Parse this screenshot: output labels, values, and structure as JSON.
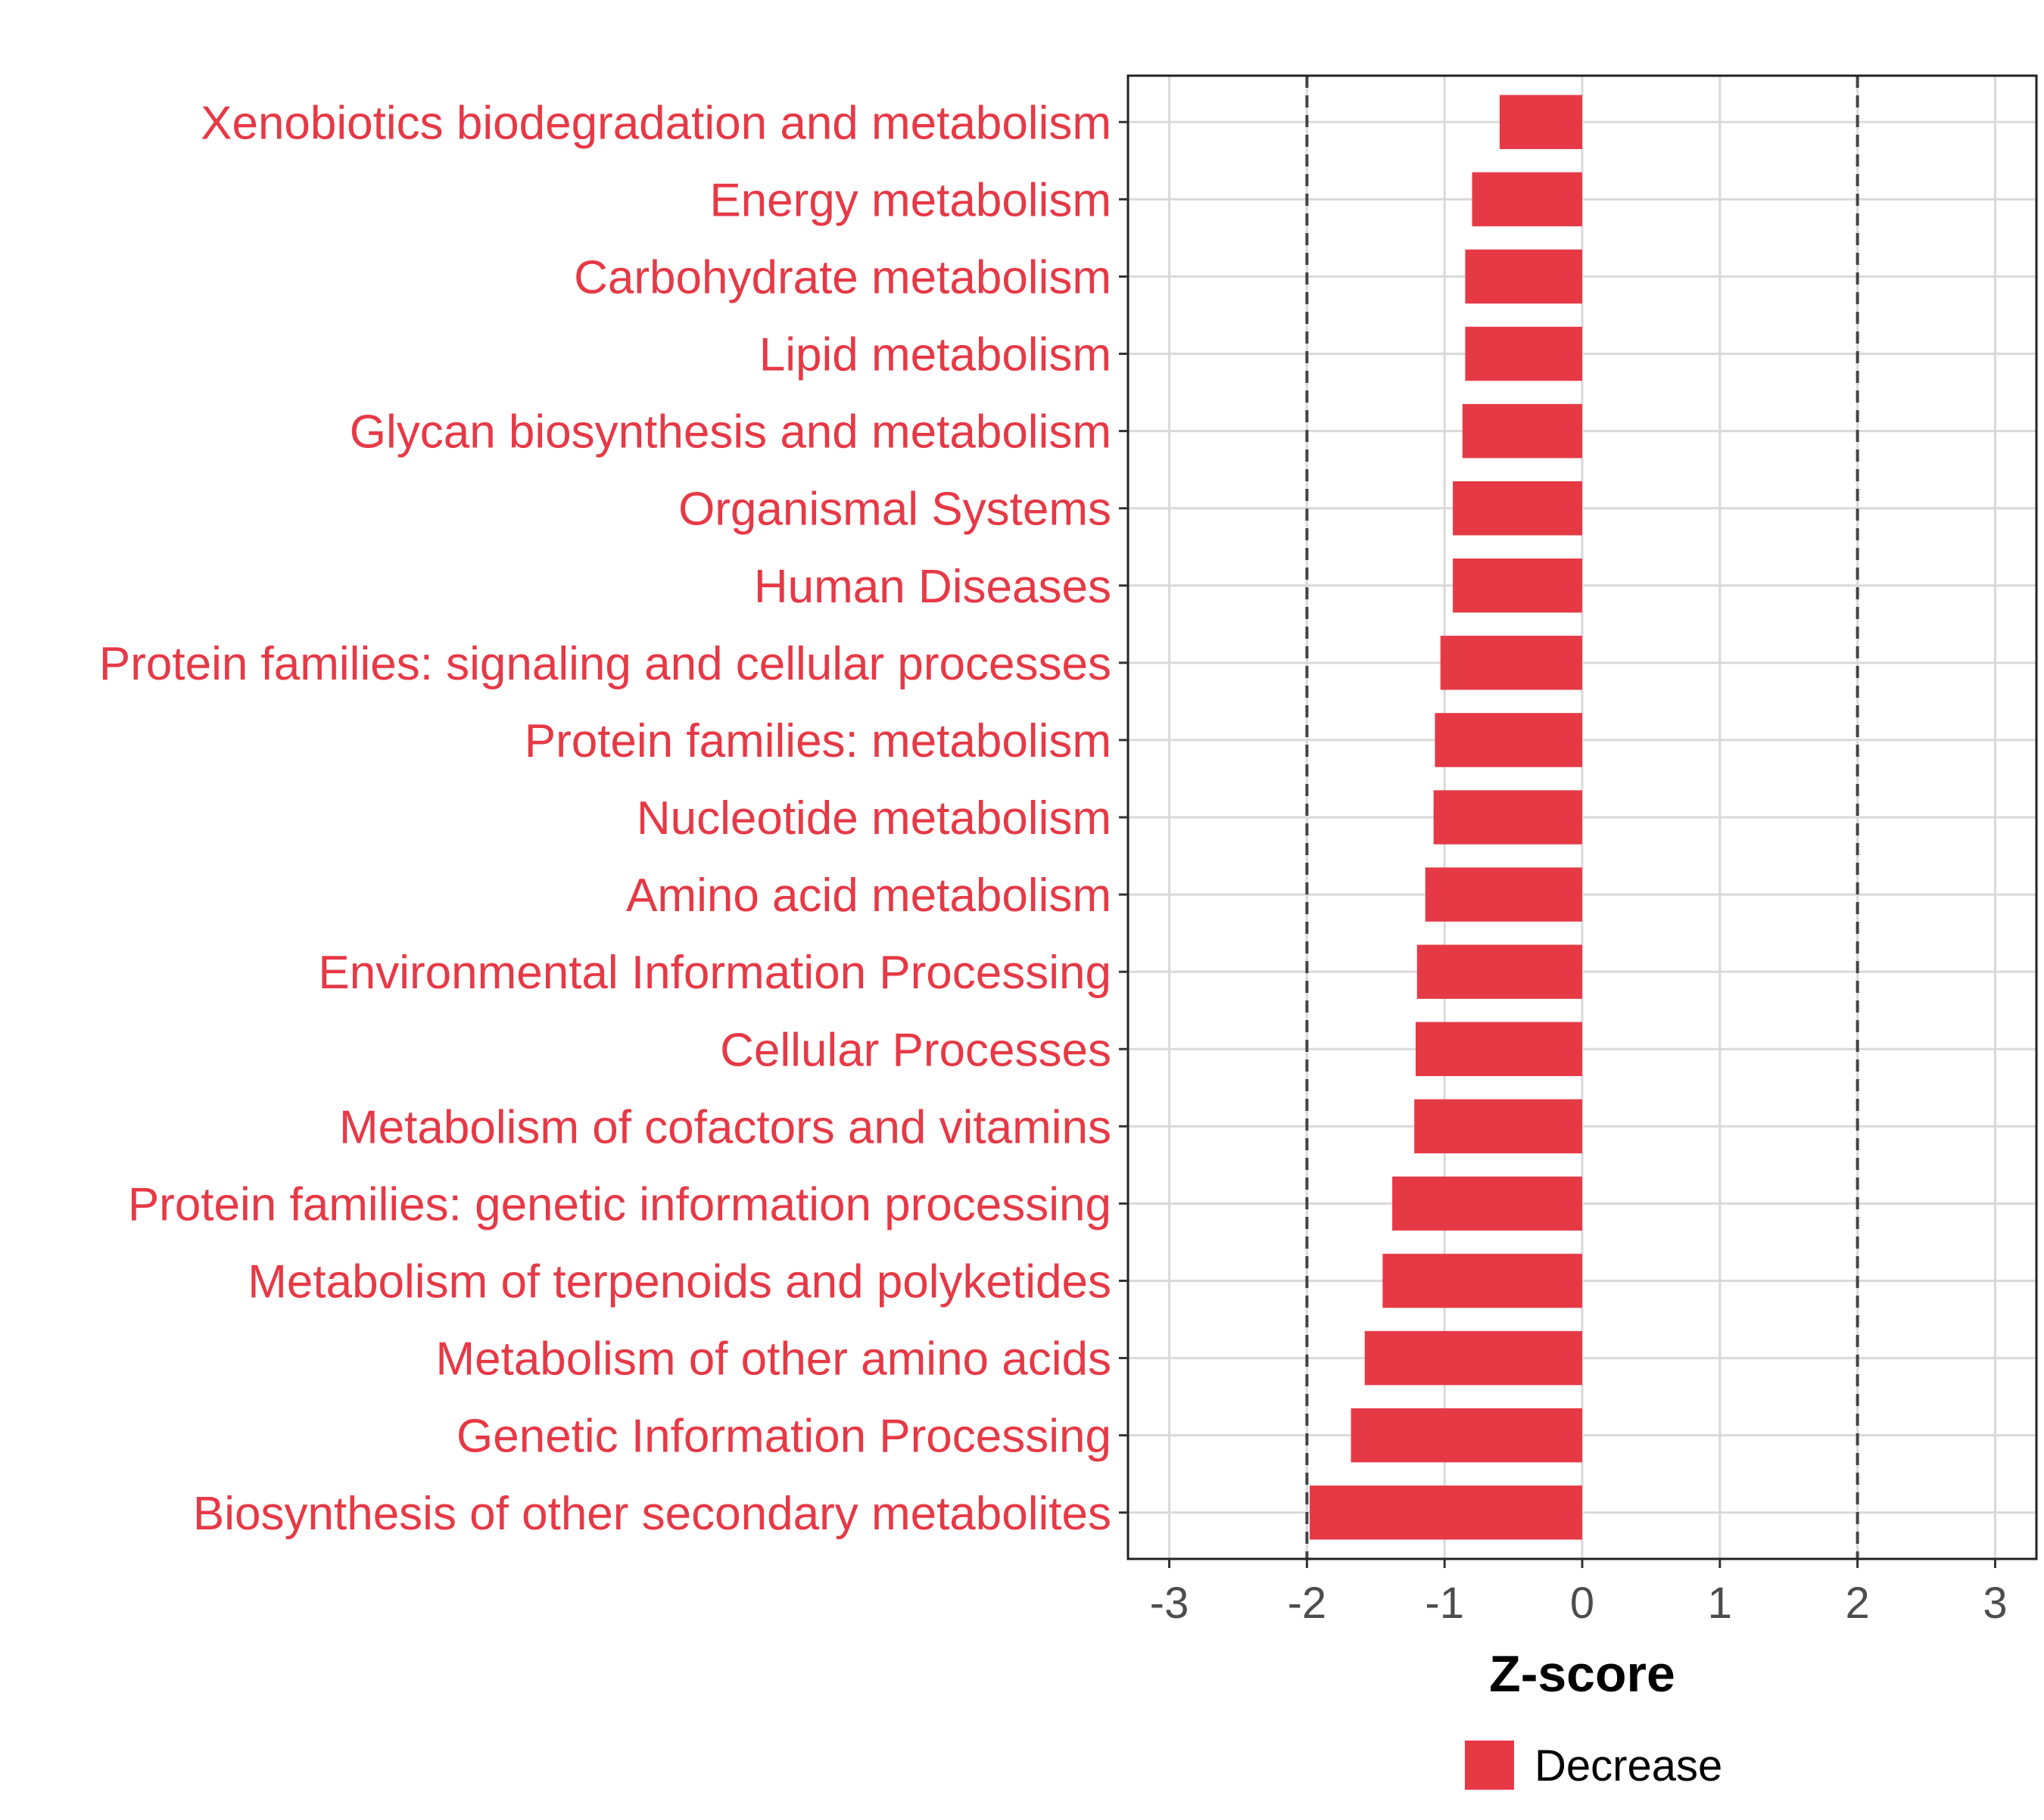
{
  "chart_data": {
    "type": "bar",
    "orientation": "horizontal",
    "xlabel": "Z-score",
    "ylabel": "",
    "xlim": [
      -3.3,
      3.3
    ],
    "xticks": [
      -3,
      -2,
      -1,
      0,
      1,
      2,
      3
    ],
    "reference_lines": [
      -2,
      2
    ],
    "grid": true,
    "legend_position": "bottom",
    "colors": {
      "decrease": "#e63946",
      "label": "#e63946"
    },
    "categories": [
      "Xenobiotics biodegradation and metabolism",
      "Energy metabolism",
      "Carbohydrate metabolism",
      "Lipid metabolism",
      "Glycan biosynthesis and metabolism",
      "Organismal Systems",
      "Human Diseases",
      "Protein families: signaling and cellular processes",
      "Protein families: metabolism",
      "Nucleotide metabolism",
      "Amino acid metabolism",
      "Environmental Information Processing",
      "Cellular Processes",
      "Metabolism of cofactors and vitamins",
      "Protein families: genetic information processing",
      "Metabolism of terpenoids and polyketides",
      "Metabolism of other amino acids",
      "Genetic Information Processing",
      "Biosynthesis of other secondary metabolites"
    ],
    "series": [
      {
        "name": "Decrease",
        "values": [
          -0.6,
          -0.8,
          -0.85,
          -0.85,
          -0.87,
          -0.94,
          -0.94,
          -1.03,
          -1.07,
          -1.08,
          -1.14,
          -1.2,
          -1.21,
          -1.22,
          -1.38,
          -1.45,
          -1.58,
          -1.68,
          -1.98
        ]
      }
    ]
  }
}
